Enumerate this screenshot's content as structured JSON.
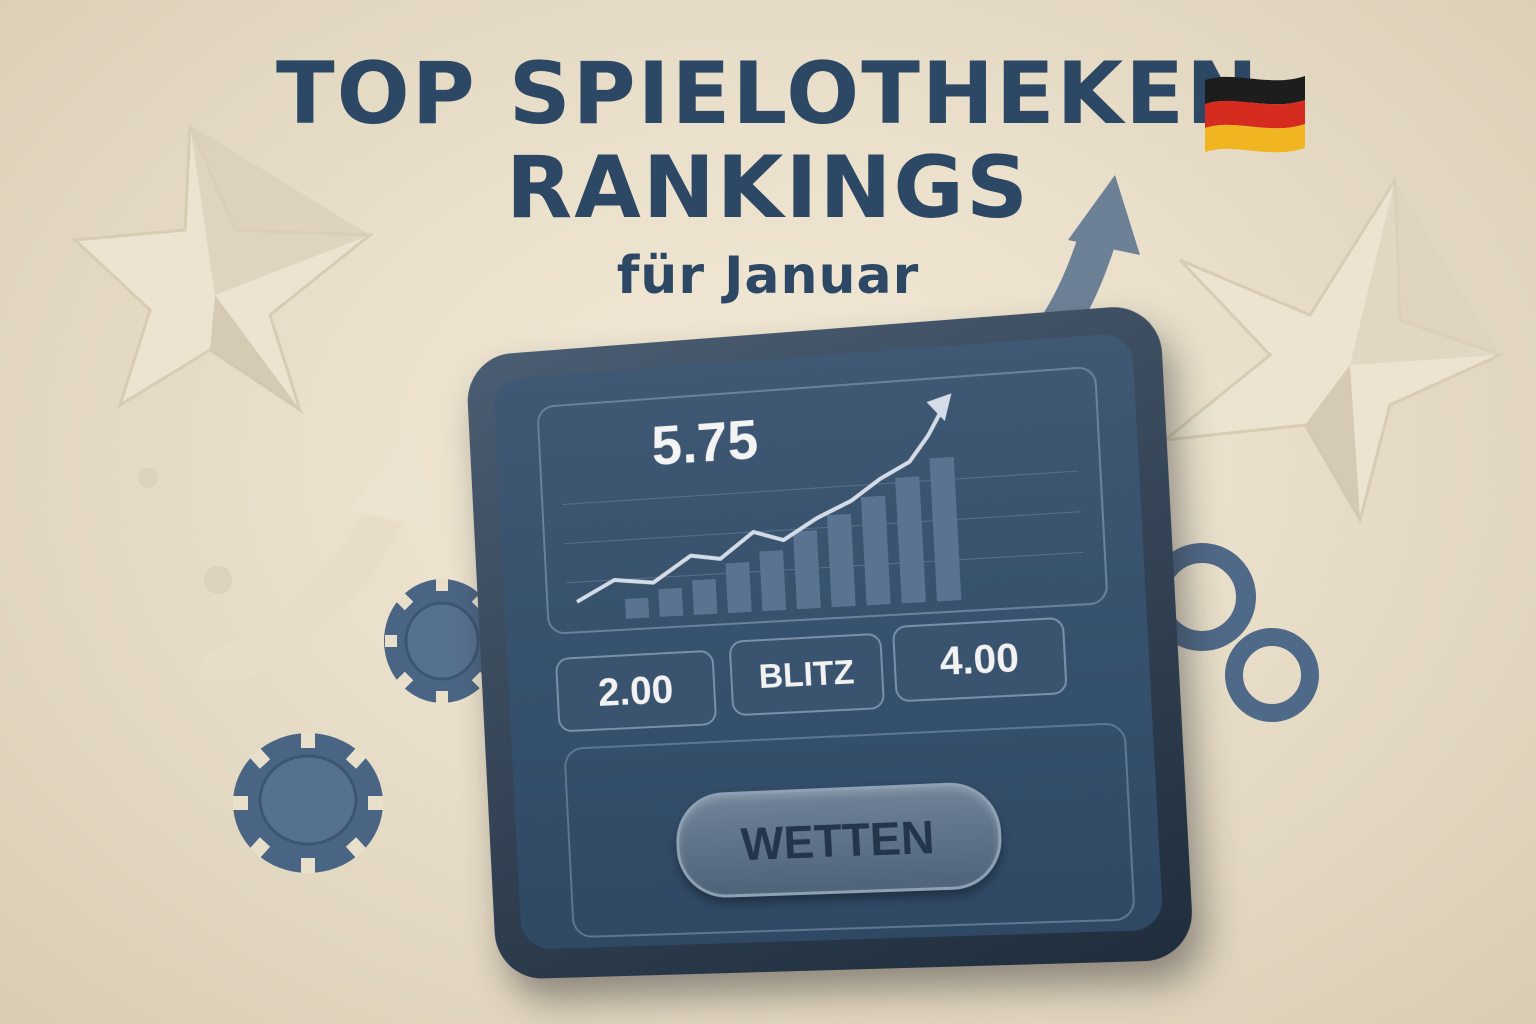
{
  "header": {
    "line1": "TOP SPIELOTHEKEN",
    "line2": "RANKINGS",
    "subtitle": "für Januar",
    "flag_icon": "germany-flag-icon"
  },
  "tablet": {
    "chart_value": "5.75",
    "odds": [
      "2.00",
      "BLITZ",
      "4.00"
    ],
    "bet_label": "WETTEN"
  },
  "colors": {
    "title": "#2c4865",
    "background": "#efe6d2",
    "tablet_screen": "#3f5873",
    "chip": "#4a6584",
    "star": "#ece3d0"
  },
  "icons": [
    "star-icon",
    "arrow-up-icon",
    "poker-chip-icon",
    "ring-icon",
    "trend-arrow-icon"
  ]
}
